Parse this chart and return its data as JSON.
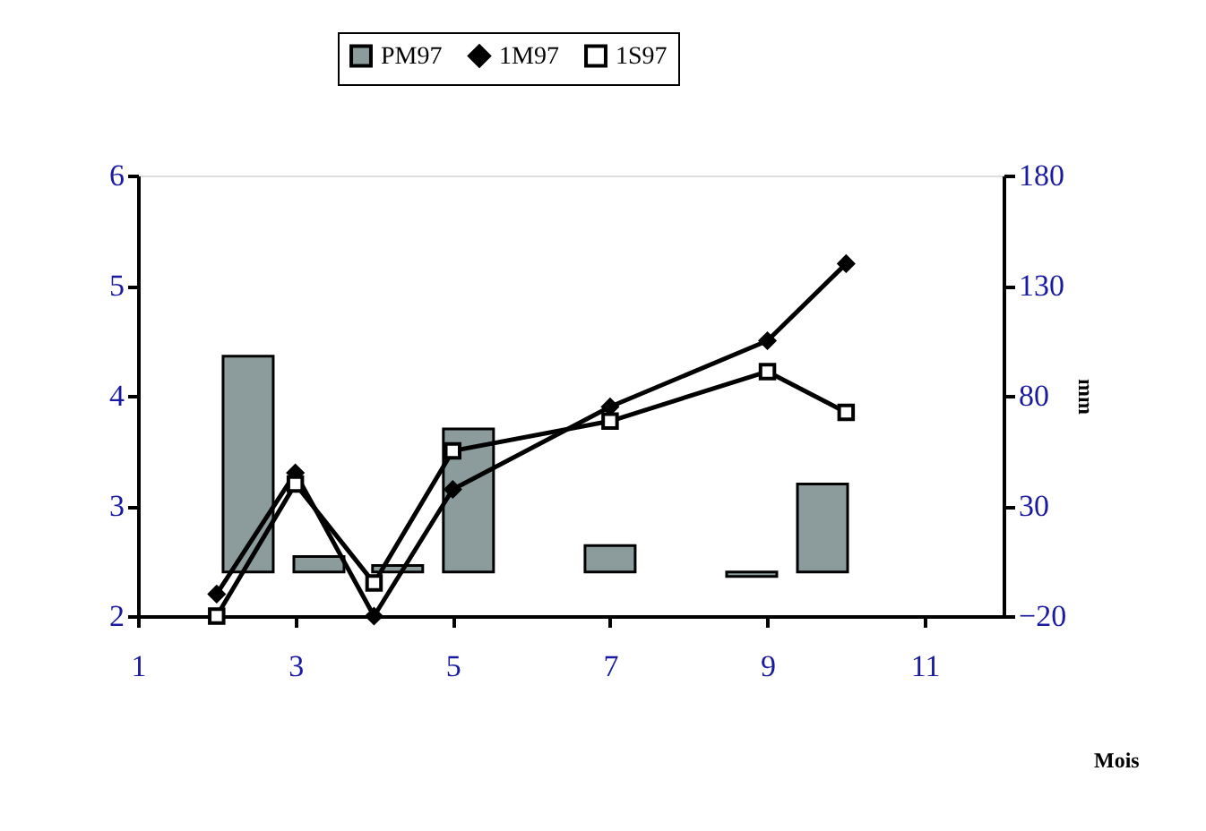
{
  "chart_data": {
    "type": "bar",
    "xlabel": "Mois",
    "y2label": "mm",
    "xlim": [
      1,
      12
    ],
    "xticks": [
      1,
      3,
      5,
      7,
      9,
      11
    ],
    "ylim": [
      2,
      6
    ],
    "yticks": [
      2,
      3,
      4,
      5,
      6
    ],
    "y2lim": [
      -20,
      180
    ],
    "y2ticks": [
      -20,
      30,
      80,
      130,
      180
    ],
    "legend": "top",
    "grid": false,
    "series": [
      {
        "name": "PM97",
        "axis": "y2",
        "color": "#8c9c9c",
        "x": [
          2.4,
          3.3,
          4.3,
          5.2,
          7.0,
          8.8,
          9.7
        ],
        "values": [
          98,
          7,
          3,
          65,
          12,
          -2,
          40
        ]
      },
      {
        "name": "1M97",
        "type": "line",
        "color": "#000000",
        "marker": "diamond",
        "x": [
          2,
          3,
          4,
          5,
          7,
          9,
          10
        ],
        "values": [
          2.2,
          3.3,
          2.0,
          3.15,
          3.9,
          4.5,
          5.2
        ]
      },
      {
        "name": "1S97",
        "type": "line",
        "color": "#000000",
        "marker": "square",
        "x": [
          2,
          3,
          4,
          5,
          7,
          9,
          10
        ],
        "values": [
          2.0,
          3.2,
          2.3,
          3.5,
          3.77,
          4.22,
          3.85
        ]
      }
    ]
  }
}
